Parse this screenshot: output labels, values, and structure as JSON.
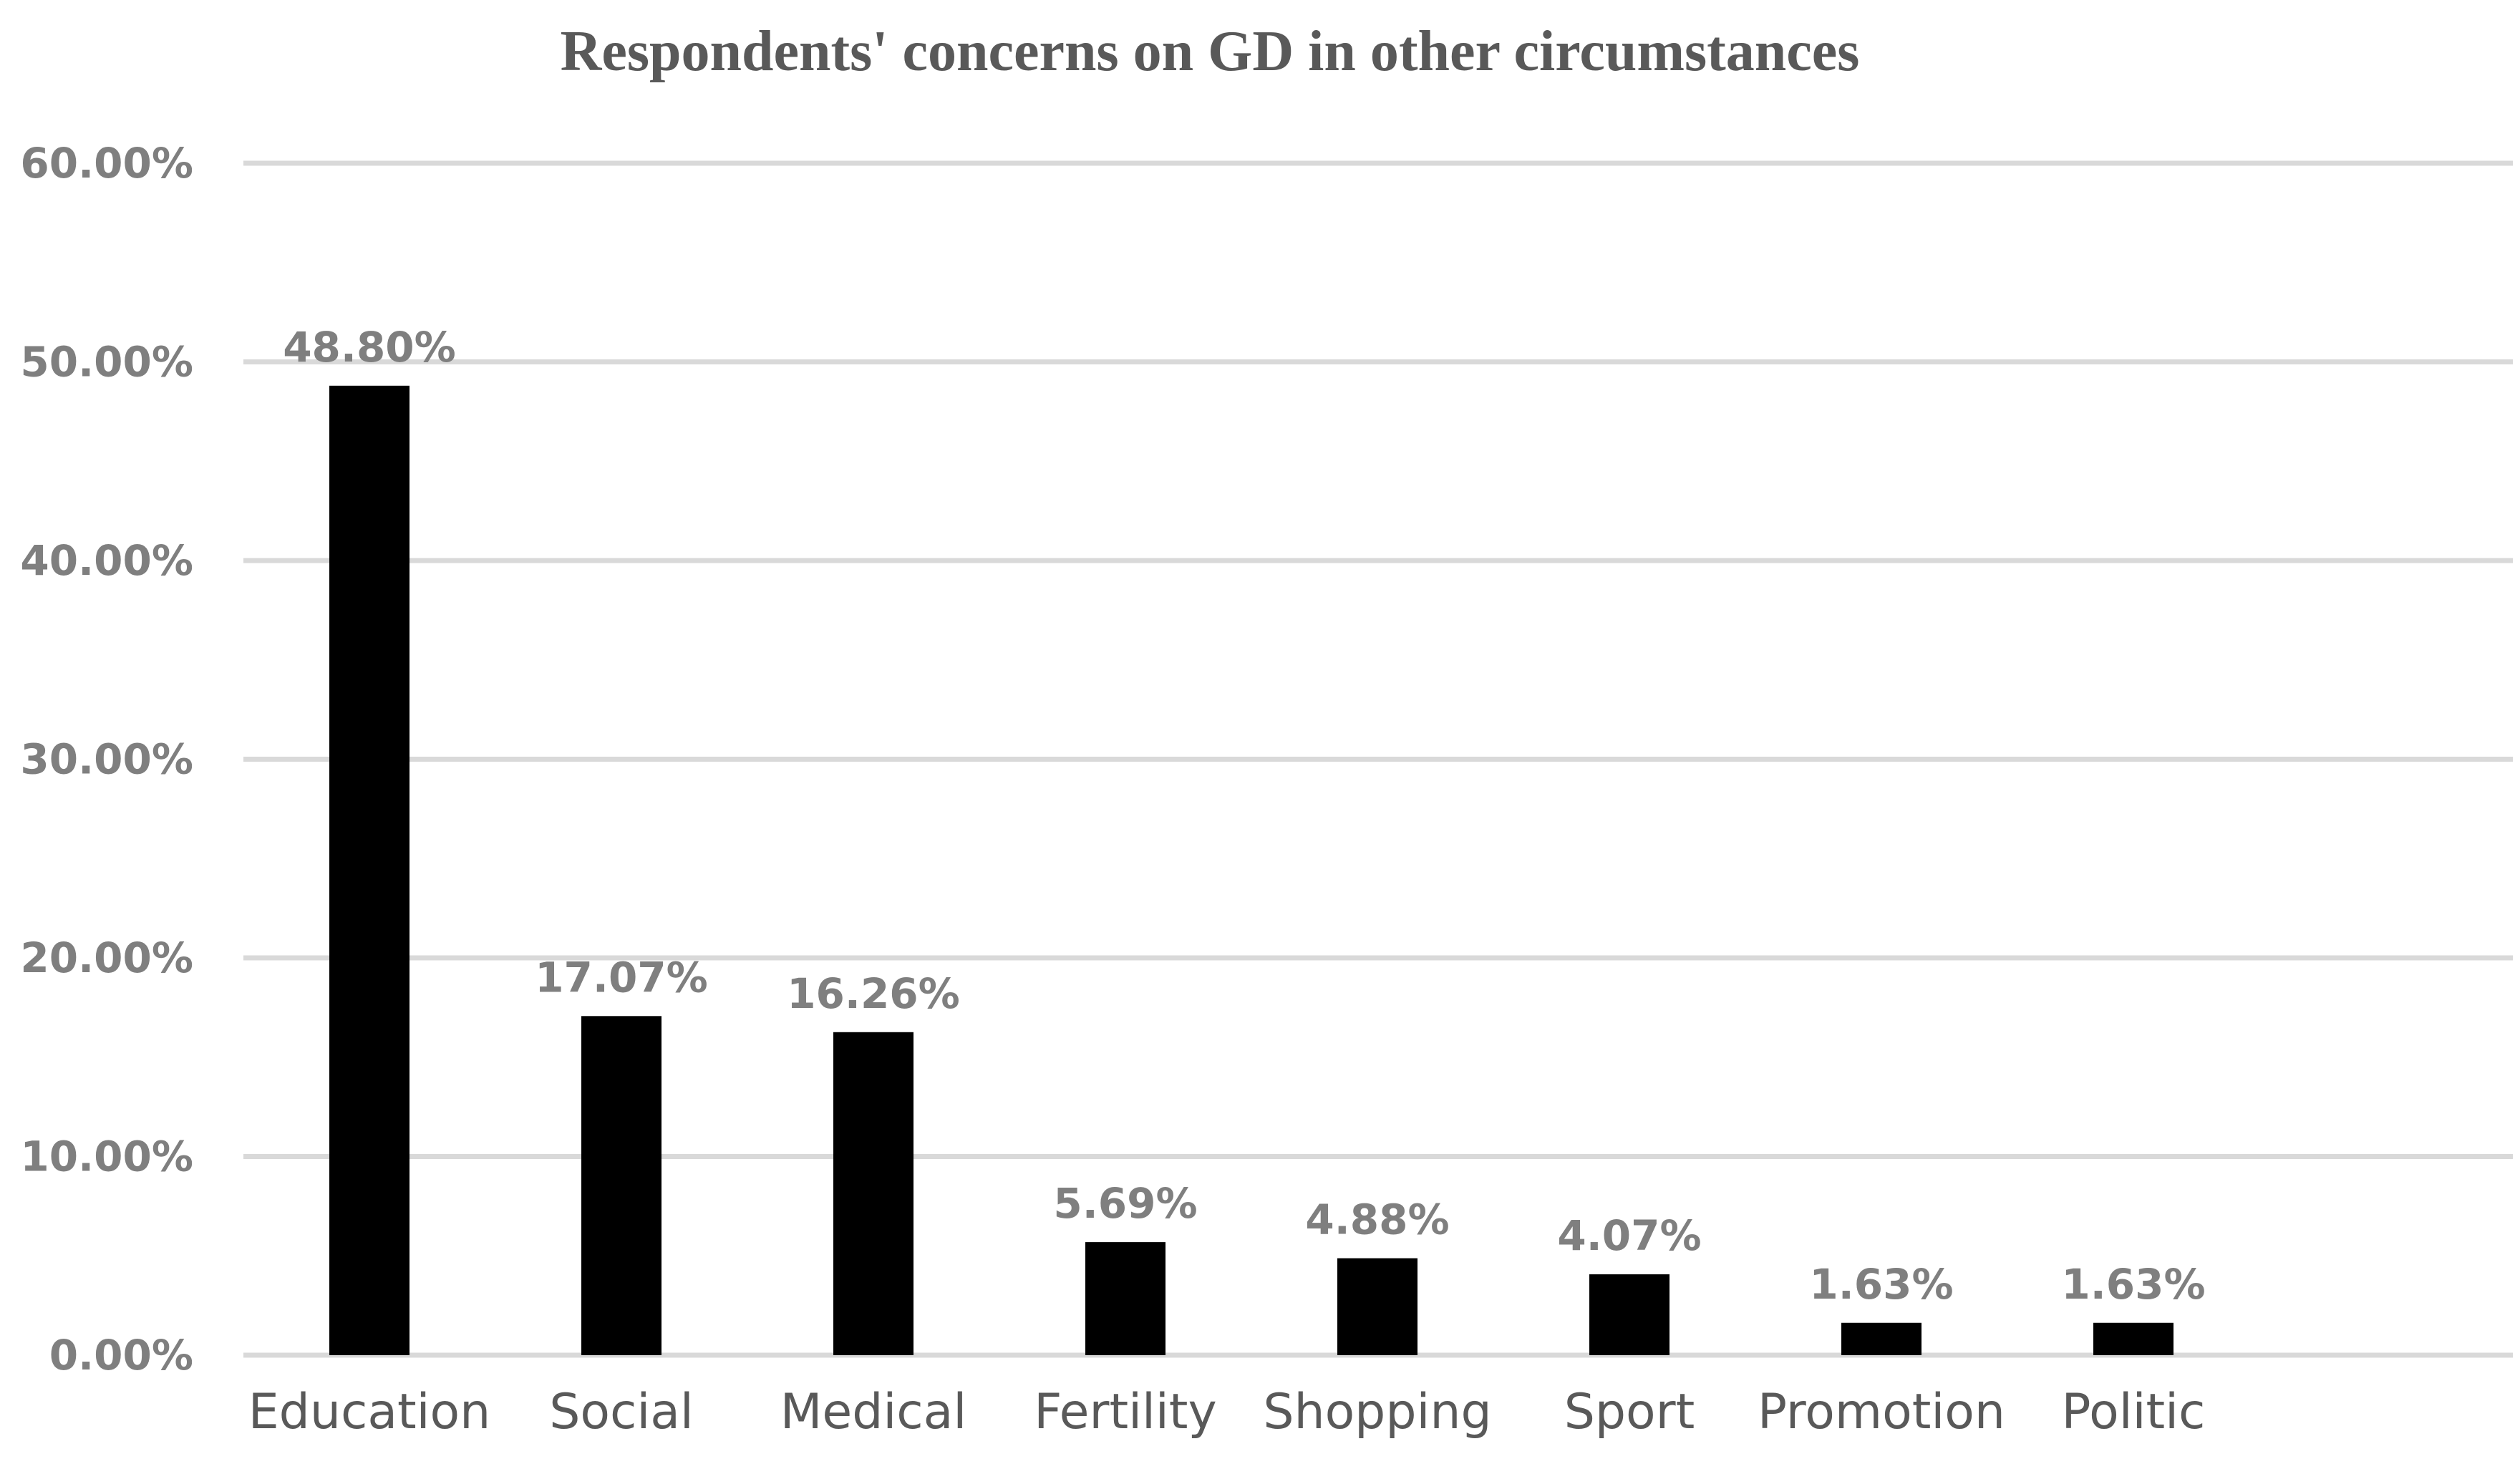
{
  "chart_data": {
    "type": "bar",
    "title": "Respondents' concerns on GD in other circumstances",
    "xlabel": "",
    "ylabel": "",
    "categories": [
      "Education",
      "Social",
      "Medical",
      "Fertility",
      "Shopping",
      "Sport",
      "Promotion",
      "Politic"
    ],
    "values": [
      48.8,
      17.07,
      16.26,
      5.69,
      4.88,
      4.07,
      1.63,
      1.63
    ],
    "value_labels": [
      "48.80%",
      "17.07%",
      "16.26%",
      "5.69%",
      "4.88%",
      "4.07%",
      "1.63%",
      "1.63%"
    ],
    "ylim": [
      0,
      60
    ],
    "yticks": [
      0,
      10,
      20,
      30,
      40,
      50,
      60
    ],
    "ytick_labels": [
      "0.00%",
      "10.00%",
      "20.00%",
      "30.00%",
      "40.00%",
      "50.00%",
      "60.00%"
    ],
    "grid": true,
    "legend": "none",
    "colors": {
      "bar": "#000000",
      "grid": "#d9d9d9",
      "title": "#595959",
      "labels": "#7f7f7f"
    }
  }
}
